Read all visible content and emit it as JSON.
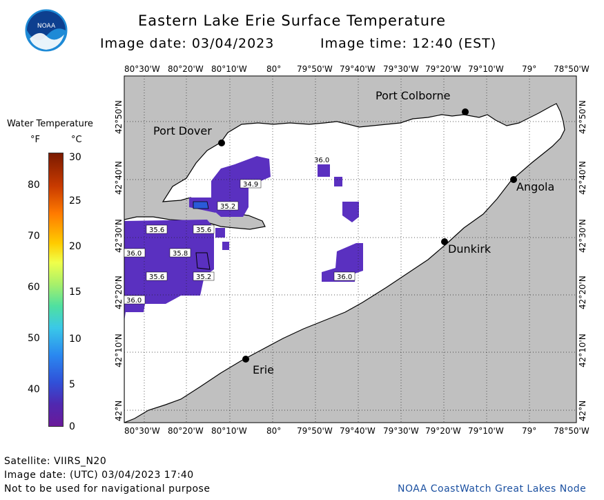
{
  "header": {
    "title": "Eastern Lake Erie Surface Temperature",
    "image_date": "Image date: 03/04/2023",
    "image_time": "Image time: 12:40 (EST)"
  },
  "logo": {
    "text": "NOAA"
  },
  "legend": {
    "title": "Water Temperature",
    "unit_f": "°F",
    "unit_c": "°C",
    "f_ticks": [
      "80",
      "70",
      "60",
      "50",
      "40"
    ],
    "c_ticks": [
      "30",
      "25",
      "20",
      "15",
      "10",
      "5",
      "0"
    ]
  },
  "axes": {
    "lon_labels": [
      "80°30'W",
      "80°20'W",
      "80°10'W",
      "80°",
      "79°50'W",
      "79°40'W",
      "79°30'W",
      "79°20'W",
      "79°10'W",
      "79°",
      "78°50'W"
    ],
    "lat_labels": [
      "42°50'N",
      "42°40'N",
      "42°30'N",
      "42°20'N",
      "42°10'N",
      "42°N"
    ]
  },
  "places": [
    {
      "name": "Port Colborne"
    },
    {
      "name": "Port Dover"
    },
    {
      "name": "Angola"
    },
    {
      "name": "Dunkirk"
    },
    {
      "name": "Erie"
    }
  ],
  "temp_labels": [
    "36.0",
    "34.9",
    "35.2",
    "35.6",
    "35.6",
    "36.0",
    "35.8",
    "35.6",
    "35.2",
    "36.0",
    "36.0"
  ],
  "footer": {
    "satellite": "Satellite: VIIRS_N20",
    "utc_date": "Image date: (UTC) 03/04/2023  17:40",
    "disclaimer": "Not to be used for navigational purpose",
    "credit": "NOAA CoastWatch Great Lakes Node"
  },
  "colors": {
    "land": "#c0c0c0",
    "water": "#ffffff",
    "cold_water": "#5a30c0",
    "coldest_water": "#2a5ad8",
    "credit_text": "#1a4fa0"
  }
}
